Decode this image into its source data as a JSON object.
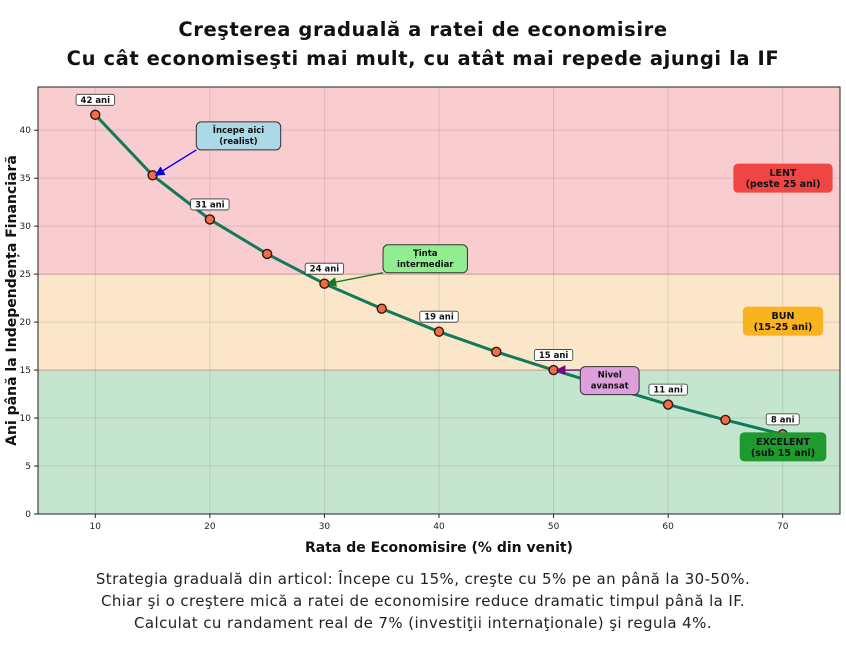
{
  "title": "Creşterea graduală a ratei de economisire",
  "subtitle": "Cu cât economiseşti mai mult, cu atât mai repede ajungi la IF",
  "footer": [
    "Strategia graduală din articol: Începe cu 15%, creşte cu 5% pe an până la 30-50%.",
    "Chiar şi o creştere mică a ratei de economisire reduce dramatic timpul până la IF.",
    "Calculat cu randament real de 7% (investiţii internaţionale) şi regula 4%."
  ],
  "chart_data": {
    "type": "line",
    "xlabel": "Rata de Economisire (% din venit)",
    "ylabel": "Ani până la Independența Financiară",
    "xlim": [
      5,
      75
    ],
    "ylim": [
      0,
      44.5
    ],
    "xticks": [
      10,
      20,
      30,
      40,
      50,
      60,
      70
    ],
    "yticks": [
      0,
      5,
      10,
      15,
      20,
      25,
      30,
      35,
      40
    ],
    "grid": true,
    "line_color": "#117a5b",
    "marker_color": "#f26c45",
    "x": [
      10,
      15,
      20,
      25,
      30,
      35,
      40,
      45,
      50,
      55,
      60,
      65,
      70
    ],
    "y": [
      41.6,
      35.3,
      30.7,
      27.1,
      24.0,
      21.4,
      19.0,
      16.9,
      15.0,
      13.2,
      11.4,
      9.8,
      8.3
    ],
    "point_labels": [
      {
        "x": 10,
        "y": 41.6,
        "text": "42 ani"
      },
      {
        "x": 20,
        "y": 30.7,
        "text": "31 ani"
      },
      {
        "x": 30,
        "y": 24.0,
        "text": "24 ani"
      },
      {
        "x": 40,
        "y": 19.0,
        "text": "19 ani"
      },
      {
        "x": 50,
        "y": 15.0,
        "text": "15 ani"
      },
      {
        "x": 60,
        "y": 11.4,
        "text": "11 ani"
      },
      {
        "x": 70,
        "y": 8.3,
        "text": "8 ani"
      }
    ],
    "zones": [
      {
        "from": 25,
        "to": 44.5,
        "color": "#f9cccf",
        "lines": [
          "LENT",
          "(peste 25 ani)"
        ],
        "box_color": "#f04545",
        "label_y": 35.0
      },
      {
        "from": 15,
        "to": 25,
        "color": "#fbe6c9",
        "lines": [
          "BUN",
          "(15-25 ani)"
        ],
        "box_color": "#f9b31f",
        "label_y": 20.1
      },
      {
        "from": 0,
        "to": 15,
        "color": "#c4e6cf",
        "lines": [
          "EXCELENT",
          "(sub 15 ani)"
        ],
        "box_color": "#1f9a2e",
        "label_y": 7.0
      }
    ],
    "annotations": [
      {
        "lines": [
          "Începe aici",
          "(realist)"
        ],
        "box_color": "#add8e6",
        "arrow_color": "#0000ee",
        "at_x": 22.5,
        "at_y": 39.4,
        "target_x": 15,
        "target_y": 35.3
      },
      {
        "lines": [
          "Ținta",
          "intermediar"
        ],
        "box_color": "#90ee90",
        "arrow_color": "#117a22",
        "at_x": 38.8,
        "at_y": 26.6,
        "target_x": 30,
        "target_y": 24.0
      },
      {
        "lines": [
          "Nivel",
          "avansat"
        ],
        "box_color": "#dda0dd",
        "arrow_color": "#800080",
        "at_x": 54.9,
        "at_y": 13.9,
        "target_x": 50,
        "target_y": 15.0
      }
    ]
  }
}
